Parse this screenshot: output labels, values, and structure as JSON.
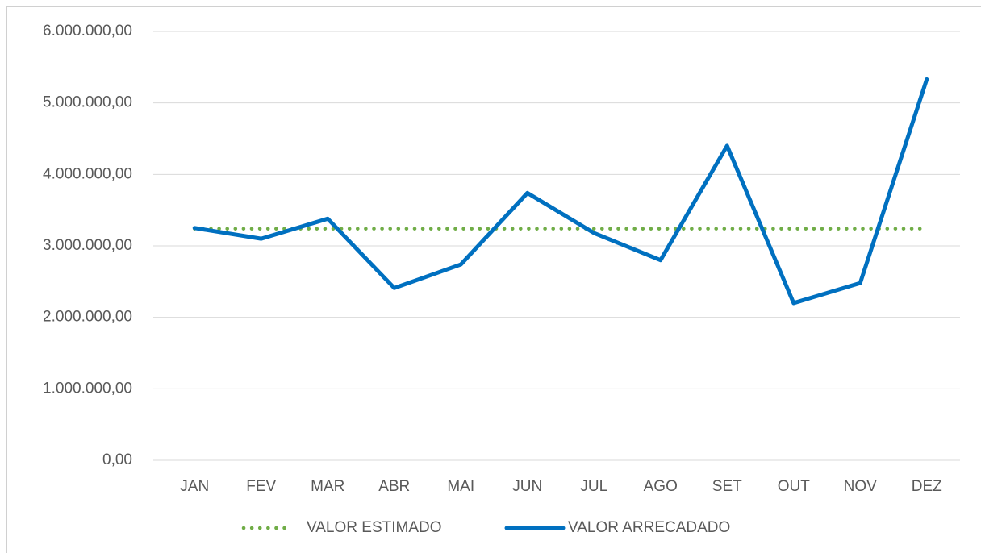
{
  "chart_data": {
    "type": "line",
    "categories": [
      "JAN",
      "FEV",
      "MAR",
      "ABR",
      "MAI",
      "JUN",
      "JUL",
      "AGO",
      "SET",
      "OUT",
      "NOV",
      "DEZ"
    ],
    "series": [
      {
        "name": "VALOR ESTIMADO",
        "color": "#70ad47",
        "style": "dotted",
        "values": [
          3240000,
          3240000,
          3240000,
          3240000,
          3240000,
          3240000,
          3240000,
          3240000,
          3240000,
          3240000,
          3240000,
          3240000
        ]
      },
      {
        "name": "VALOR ARRECADADO",
        "color": "#0070c0",
        "style": "solid",
        "values": [
          3250000,
          3100000,
          3380000,
          2410000,
          2740000,
          3740000,
          3180000,
          2800000,
          4400000,
          2200000,
          2480000,
          5330000
        ]
      }
    ],
    "ylim": [
      0,
      6000000
    ],
    "yticks": [
      {
        "value": 0,
        "label": "0,00"
      },
      {
        "value": 1000000,
        "label": "1.000.000,00"
      },
      {
        "value": 2000000,
        "label": "2.000.000,00"
      },
      {
        "value": 3000000,
        "label": "3.000.000,00"
      },
      {
        "value": 4000000,
        "label": "4.000.000,00"
      },
      {
        "value": 5000000,
        "label": "5.000.000,00"
      },
      {
        "value": 6000000,
        "label": "6.000.000,00"
      }
    ],
    "grid": true,
    "legend": "bottom"
  }
}
